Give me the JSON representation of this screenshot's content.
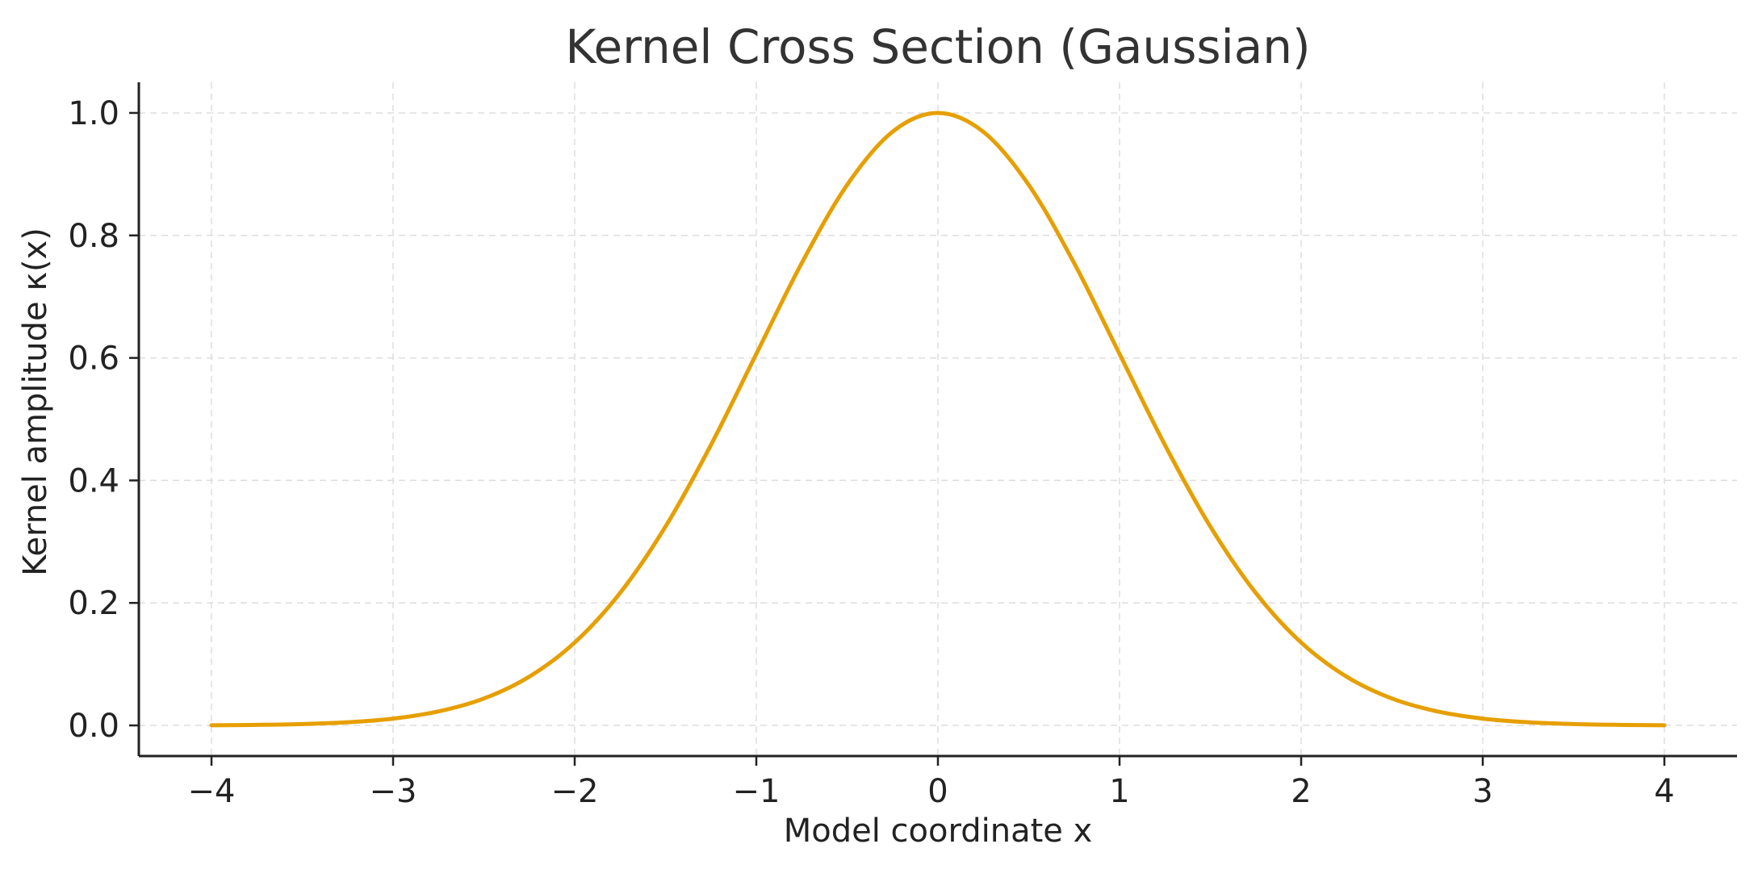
{
  "chart_data": {
    "type": "line",
    "title": "Kernel Cross Section (Gaussian)",
    "xlabel": "Model coordinate x",
    "ylabel": "Kernel amplitude κ(x)",
    "xlim": [
      -4.4,
      4.4
    ],
    "ylim": [
      -0.05,
      1.05
    ],
    "x_ticks": [
      -4,
      -3,
      -2,
      -1,
      0,
      1,
      2,
      3,
      4
    ],
    "x_tick_labels": [
      "−4",
      "−3",
      "−2",
      "−1",
      "0",
      "1",
      "2",
      "3",
      "4"
    ],
    "y_ticks": [
      0.0,
      0.2,
      0.4,
      0.6,
      0.8,
      1.0
    ],
    "y_tick_labels": [
      "0.0",
      "0.2",
      "0.4",
      "0.6",
      "0.8",
      "1.0"
    ],
    "grid": true,
    "series": [
      {
        "color": "#E69F00",
        "x": [
          -4.0,
          -3.75,
          -3.5,
          -3.25,
          -3.0,
          -2.75,
          -2.5,
          -2.25,
          -2.0,
          -1.75,
          -1.5,
          -1.25,
          -1.0,
          -0.75,
          -0.5,
          -0.25,
          0.0,
          0.25,
          0.5,
          0.75,
          1.0,
          1.25,
          1.5,
          1.75,
          2.0,
          2.25,
          2.5,
          2.75,
          3.0,
          3.25,
          3.5,
          3.75,
          4.0
        ],
        "y": [
          0.0003,
          0.0009,
          0.0022,
          0.0051,
          0.0111,
          0.0228,
          0.0439,
          0.0796,
          0.1353,
          0.2163,
          0.3247,
          0.4578,
          0.6065,
          0.7548,
          0.8825,
          0.9692,
          1.0,
          0.9692,
          0.8825,
          0.7548,
          0.6065,
          0.4578,
          0.3247,
          0.2163,
          0.1353,
          0.0796,
          0.0439,
          0.0228,
          0.0111,
          0.0051,
          0.0022,
          0.0009,
          0.0003
        ]
      }
    ]
  }
}
